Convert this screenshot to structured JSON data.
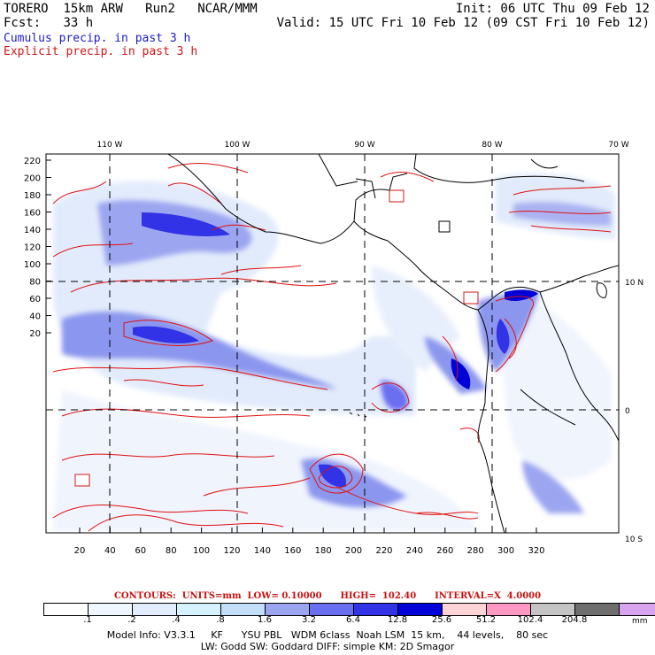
{
  "header": {
    "model": "TORERO",
    "resolution": "15km ARW",
    "run": "Run2",
    "org": "NCAR/MMM",
    "init": "Init: 06 UTC Thu 09 Feb 12",
    "fcst_label": "Fcst:",
    "fcst_value": "33 h",
    "valid": "Valid: 15 UTC Fri 10 Feb 12 (09 CST Fri 10 Feb 12)",
    "field1": "Cumulus precip. in past 3 h",
    "field2": "Explicit precip. in past 3 h"
  },
  "colors": {
    "field1": "#1c1cc8",
    "field2": "#d01818",
    "contour": "#e01010",
    "coast": "#000000"
  },
  "axes": {
    "lon_labels": [
      "110 W",
      "100 W",
      "90 W",
      "80 W",
      "70 W"
    ],
    "lat_labels": [
      "10 N",
      "0",
      "10 S"
    ],
    "y_ticks": [
      "220",
      "200",
      "180",
      "160",
      "140",
      "120",
      "100",
      "80",
      "60",
      "40",
      "20"
    ],
    "x_ticks": [
      "20",
      "40",
      "60",
      "80",
      "100",
      "120",
      "140",
      "160",
      "180",
      "200",
      "220",
      "240",
      "260",
      "280",
      "300",
      "320"
    ]
  },
  "contours_info": "CONTOURS:  UNITS=mm  LOW= 0.10000      HIGH=  102.40      INTERVAL=X  4.0000",
  "legend": {
    "colors": [
      "#ffffff",
      "#f0f6ff",
      "#e2edff",
      "#d4f2ff",
      "#c2def8",
      "#9ca6f0",
      "#6a6ef0",
      "#3232e6",
      "#0000d8",
      "#ffd4d6",
      "#ff99c4",
      "#c4c4c4",
      "#6e6e6e",
      "#d8a4f0"
    ],
    "labels": [
      ".1",
      ".2",
      ".4",
      ".8",
      "1.6",
      "3.2",
      "6.4",
      "12.8",
      "25.6",
      "51.2",
      "102.4",
      "204.8"
    ],
    "unit": "mm"
  },
  "footer": {
    "line1": "Model Info: V3.3.1     KF      YSU PBL   WDM 6class  Noah LSM  15 km,    44 levels,    80 sec",
    "line2": "LW: Godd SW: Goddard DIFF: simple KM: 2D Smagor"
  }
}
